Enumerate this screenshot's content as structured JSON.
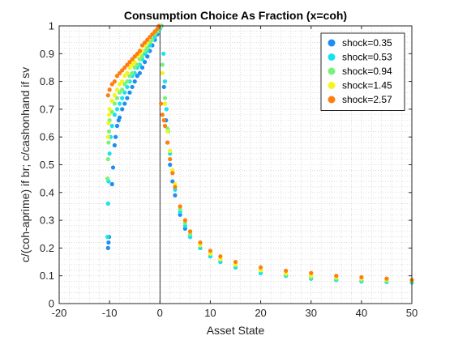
{
  "chart_data": {
    "type": "scatter",
    "title": "Consumption Choice As Fraction (x=coh)",
    "xlabel": "Asset State",
    "ylabel": "c/(coh-aprime) if br; c/cashonhand if sv",
    "xlim": [
      -20,
      50
    ],
    "ylim": [
      0,
      1
    ],
    "xticks": [
      -20,
      -10,
      0,
      10,
      20,
      30,
      40,
      50
    ],
    "yticks": [
      0,
      0.1,
      0.2,
      0.3,
      0.4,
      0.5,
      0.6,
      0.7,
      0.8,
      0.9,
      1
    ],
    "grid": "minor-dotted",
    "legend_position": "top-right",
    "vertical_line_x": 0,
    "series": [
      {
        "name": "shock=0.35",
        "color": "#1f8ef2",
        "x": [
          -10.3,
          -10.2,
          -10.1,
          -9.5,
          -9.3,
          -9.0,
          -8.8,
          -8.5,
          -8.2,
          -8.0,
          -7.5,
          -7.0,
          -6.5,
          -6.0,
          -5.5,
          -5.0,
          -4.5,
          -4.0,
          -3.5,
          -3.0,
          -2.5,
          -2.0,
          -1.5,
          -1.0,
          -0.5,
          0.0,
          0.3,
          0.8,
          1.0,
          1.2,
          1.5,
          2.0,
          2.5,
          3.0,
          4.0,
          5.0,
          6.0,
          8.0,
          10.0,
          12.0,
          15.0,
          20.0,
          25.0,
          30.0,
          35.0,
          40.0,
          45.0,
          50.0
        ],
        "y": [
          0.2,
          0.22,
          0.24,
          0.43,
          0.49,
          0.57,
          0.6,
          0.64,
          0.66,
          0.67,
          0.7,
          0.72,
          0.74,
          0.76,
          0.78,
          0.8,
          0.82,
          0.83,
          0.85,
          0.87,
          0.89,
          0.91,
          0.93,
          0.95,
          0.97,
          0.99,
          1.0,
          0.78,
          0.72,
          0.66,
          0.58,
          0.5,
          0.44,
          0.39,
          0.32,
          0.27,
          0.24,
          0.2,
          0.17,
          0.15,
          0.13,
          0.11,
          0.1,
          0.09,
          0.085,
          0.08,
          0.078,
          0.076
        ]
      },
      {
        "name": "shock=0.53",
        "color": "#17e3f0",
        "x": [
          -10.4,
          -10.3,
          -10.2,
          -10.0,
          -9.8,
          -9.5,
          -9.0,
          -8.5,
          -8.0,
          -7.5,
          -7.0,
          -6.5,
          -6.0,
          -5.5,
          -5.0,
          -4.5,
          -4.0,
          -3.5,
          -3.0,
          -2.5,
          -2.0,
          -1.5,
          -1.0,
          -0.5,
          0.0,
          0.3,
          0.7,
          1.0,
          1.3,
          1.6,
          2.0,
          2.5,
          3.0,
          4.0,
          5.0,
          6.0,
          8.0,
          10.0,
          12.0,
          15.0,
          20.0,
          25.0,
          30.0,
          35.0,
          40.0,
          45.0,
          50.0
        ],
        "y": [
          0.24,
          0.36,
          0.44,
          0.54,
          0.6,
          0.64,
          0.68,
          0.7,
          0.72,
          0.74,
          0.76,
          0.78,
          0.8,
          0.82,
          0.83,
          0.85,
          0.86,
          0.88,
          0.9,
          0.91,
          0.93,
          0.95,
          0.96,
          0.98,
          0.99,
          1.0,
          0.9,
          0.8,
          0.7,
          0.62,
          0.54,
          0.47,
          0.41,
          0.33,
          0.28,
          0.24,
          0.2,
          0.17,
          0.15,
          0.13,
          0.11,
          0.1,
          0.09,
          0.085,
          0.08,
          0.078,
          0.076
        ]
      },
      {
        "name": "shock=0.94",
        "color": "#7af27a",
        "x": [
          -10.4,
          -10.3,
          -10.2,
          -10.1,
          -10.0,
          -9.5,
          -9.0,
          -8.5,
          -8.0,
          -7.5,
          -7.0,
          -6.5,
          -6.0,
          -5.5,
          -5.0,
          -4.5,
          -4.0,
          -3.5,
          -3.0,
          -2.5,
          -2.0,
          -1.5,
          -1.0,
          -0.5,
          0.0,
          0.5,
          1.0,
          1.5,
          2.0,
          2.5,
          3.0,
          4.0,
          5.0,
          6.0,
          8.0,
          10.0,
          12.0,
          15.0,
          20.0,
          25.0,
          30.0,
          35.0,
          40.0,
          45.0,
          50.0
        ],
        "y": [
          0.45,
          0.52,
          0.58,
          0.62,
          0.66,
          0.69,
          0.72,
          0.74,
          0.76,
          0.77,
          0.79,
          0.8,
          0.82,
          0.83,
          0.85,
          0.86,
          0.88,
          0.89,
          0.91,
          0.92,
          0.94,
          0.95,
          0.97,
          0.98,
          0.995,
          0.86,
          0.74,
          0.63,
          0.55,
          0.48,
          0.42,
          0.34,
          0.29,
          0.25,
          0.21,
          0.18,
          0.16,
          0.14,
          0.12,
          0.105,
          0.095,
          0.09,
          0.085,
          0.082,
          0.08
        ]
      },
      {
        "name": "shock=1.45",
        "color": "#f5f51c",
        "x": [
          -10.3,
          -10.2,
          -10.1,
          -10.0,
          -9.5,
          -9.0,
          -8.5,
          -8.0,
          -7.5,
          -7.0,
          -6.5,
          -6.0,
          -5.5,
          -5.0,
          -4.5,
          -4.0,
          -3.5,
          -3.0,
          -2.5,
          -2.0,
          -1.5,
          -1.0,
          -0.5,
          0.0,
          0.5,
          1.0,
          1.5,
          2.0,
          2.5,
          3.0,
          4.0,
          5.0,
          6.0,
          8.0,
          10.0,
          12.0,
          15.0,
          20.0,
          25.0,
          30.0,
          35.0,
          40.0,
          45.0,
          50.0
        ],
        "y": [
          0.6,
          0.65,
          0.68,
          0.7,
          0.73,
          0.75,
          0.77,
          0.79,
          0.8,
          0.82,
          0.83,
          0.85,
          0.86,
          0.87,
          0.89,
          0.9,
          0.91,
          0.93,
          0.94,
          0.96,
          0.97,
          0.98,
          0.99,
          1.0,
          0.83,
          0.72,
          0.62,
          0.55,
          0.48,
          0.43,
          0.35,
          0.3,
          0.26,
          0.21,
          0.18,
          0.16,
          0.14,
          0.12,
          0.108,
          0.1,
          0.094,
          0.09,
          0.087,
          0.085
        ]
      },
      {
        "name": "shock=2.57",
        "color": "#ff7f0e",
        "x": [
          -10.3,
          -10.0,
          -9.5,
          -9.0,
          -8.5,
          -8.0,
          -7.5,
          -7.0,
          -6.5,
          -6.0,
          -5.5,
          -5.0,
          -4.5,
          -4.0,
          -3.5,
          -3.0,
          -2.5,
          -2.0,
          -1.5,
          -1.0,
          -0.5,
          -0.2,
          0.2,
          0.5,
          0.8,
          1.0,
          1.5,
          2.0,
          2.5,
          3.0,
          4.0,
          5.0,
          6.0,
          8.0,
          10.0,
          12.0,
          15.0,
          20.0,
          25.0,
          30.0,
          35.0,
          40.0,
          45.0,
          50.0
        ],
        "y": [
          0.75,
          0.77,
          0.79,
          0.8,
          0.82,
          0.83,
          0.84,
          0.85,
          0.86,
          0.87,
          0.88,
          0.89,
          0.9,
          0.91,
          0.93,
          0.94,
          0.95,
          0.96,
          0.97,
          0.98,
          0.99,
          1.0,
          0.72,
          0.68,
          0.66,
          0.64,
          0.58,
          0.52,
          0.47,
          0.42,
          0.35,
          0.3,
          0.26,
          0.22,
          0.19,
          0.17,
          0.15,
          0.13,
          0.118,
          0.11,
          0.1,
          0.095,
          0.09,
          0.085
        ]
      }
    ]
  }
}
